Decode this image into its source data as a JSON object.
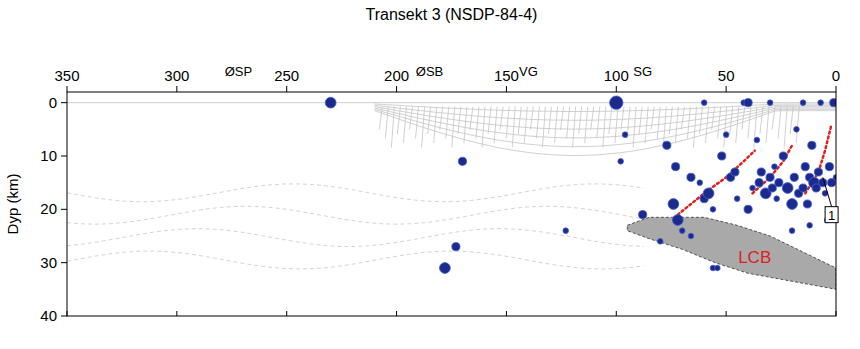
{
  "chart_data": {
    "type": "scatter",
    "title": "Transekt 3 (NSDP-84-4)",
    "y_label": "Dyp (km)",
    "xlim": [
      350,
      0
    ],
    "xticks": [
      350,
      300,
      250,
      200,
      150,
      100,
      50,
      0
    ],
    "ylim": [
      -2,
      40
    ],
    "yticks": [
      0,
      10,
      20,
      30,
      40
    ],
    "color": "#1c2a8c",
    "marker": "circle",
    "tick_labels": true,
    "x": [
      230,
      170,
      173,
      178,
      100,
      96,
      98,
      77,
      123,
      88,
      80,
      74,
      73,
      72,
      70,
      66,
      62,
      60,
      58,
      56,
      54,
      56,
      52,
      50,
      48,
      46,
      45,
      42,
      40,
      38,
      36,
      35,
      34,
      32,
      30,
      29,
      28,
      27,
      26,
      24,
      22,
      20,
      19,
      18,
      17,
      15,
      14,
      13,
      12,
      11,
      10,
      9,
      8,
      7,
      6,
      5,
      4,
      3,
      2,
      1,
      0,
      60,
      30,
      15,
      20,
      12,
      40,
      66
    ],
    "values": [
      0,
      11,
      27,
      31,
      0,
      6,
      11,
      8,
      24,
      21,
      26,
      19,
      12,
      22,
      24,
      14,
      15,
      18,
      17,
      31,
      31,
      20,
      10,
      6,
      14,
      13,
      18,
      0,
      0,
      16,
      7,
      15,
      13,
      17,
      14,
      16,
      12,
      18,
      15,
      10,
      16,
      19,
      14,
      5,
      17,
      16,
      12,
      19,
      14,
      8,
      15,
      16,
      13,
      0,
      15,
      17,
      22,
      12,
      15,
      0,
      14,
      0,
      0,
      0,
      24,
      23,
      20,
      25
    ],
    "sizes": [
      3,
      2,
      2,
      3,
      4,
      1,
      1,
      2,
      1,
      2,
      1,
      3,
      2,
      3,
      1,
      2,
      1,
      2,
      3,
      1,
      1,
      1,
      2,
      1,
      2,
      2,
      1,
      1,
      2,
      1,
      1,
      2,
      2,
      3,
      2,
      2,
      1,
      1,
      2,
      2,
      3,
      3,
      2,
      1,
      2,
      2,
      2,
      2,
      2,
      2,
      3,
      2,
      2,
      1,
      2,
      1,
      1,
      2,
      2,
      2,
      1,
      1,
      1,
      1,
      1,
      1,
      2,
      1
    ],
    "annotations": [
      {
        "text": "ØSP",
        "x": 272,
        "y": -6
      },
      {
        "text": "ØSB",
        "x": 185,
        "y": -6
      },
      {
        "text": "VG",
        "x": 140,
        "y": -6
      },
      {
        "text": "SG",
        "x": 88,
        "y": -6
      },
      {
        "text": "1",
        "x": 2,
        "y": 21
      }
    ],
    "lines": [
      {
        "color": "#e02020",
        "line_style": "dotted",
        "x": [
          72,
          60,
          50,
          42,
          37
        ],
        "y": [
          21,
          17,
          14,
          11,
          9
        ]
      },
      {
        "color": "#e02020",
        "line_style": "dotted",
        "x": [
          38,
          30,
          24,
          20
        ],
        "y": [
          17,
          14,
          11,
          8
        ]
      },
      {
        "color": "#e02020",
        "line_style": "dotted",
        "x": [
          14,
          8,
          5,
          2
        ],
        "y": [
          17,
          13,
          9,
          4
        ]
      }
    ],
    "regions": [
      {
        "label": "LCB",
        "color": "#a9a9a9",
        "label_x": 37,
        "label_y": 29,
        "x": [
          95,
          85,
          60,
          45,
          30,
          15,
          0,
          0,
          20,
          40,
          55,
          70,
          85,
          95
        ],
        "y": [
          23,
          21.5,
          21.5,
          23,
          25,
          28,
          31,
          35,
          33.5,
          32,
          30,
          27.5,
          25.5,
          24
        ]
      }
    ]
  }
}
